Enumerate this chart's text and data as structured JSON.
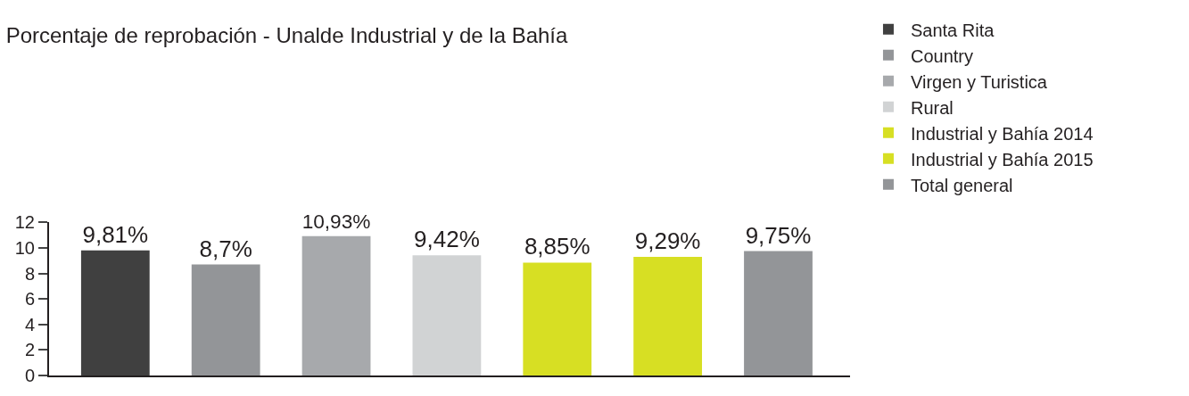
{
  "chart_data": {
    "type": "bar",
    "title": "Porcentaje de reprobación - Unalde Industrial y de la Bahía",
    "categories": [
      null,
      null,
      null,
      null,
      null,
      null,
      null
    ],
    "series": [
      {
        "name": "Santa Rita",
        "color": "#404040",
        "values": [
          9.81,
          null,
          null,
          null,
          null,
          null,
          null
        ],
        "value_labels": [
          "9,81%",
          null,
          null,
          null,
          null,
          null,
          null
        ]
      },
      {
        "name": "Country",
        "color": "#939598",
        "values": [
          null,
          8.7,
          null,
          null,
          null,
          null,
          null
        ],
        "value_labels": [
          null,
          "8,7%",
          null,
          null,
          null,
          null,
          null
        ]
      },
      {
        "name": "Virgen y Turistica",
        "color": "#a7a9ac",
        "values": [
          null,
          null,
          10.93,
          null,
          null,
          null,
          null
        ],
        "value_labels": [
          null,
          null,
          "10,93%",
          null,
          null,
          null,
          null
        ]
      },
      {
        "name": "Rural",
        "color": "#d1d3d4",
        "values": [
          null,
          null,
          null,
          9.42,
          null,
          null,
          null
        ],
        "value_labels": [
          null,
          null,
          null,
          "9,42%",
          null,
          null,
          null
        ]
      },
      {
        "name": "Industrial y Bahía 2014",
        "color": "#d7df23",
        "values": [
          null,
          null,
          null,
          null,
          8.85,
          null,
          null
        ],
        "value_labels": [
          null,
          null,
          null,
          null,
          "8,85%",
          null,
          null
        ]
      },
      {
        "name": "Industrial y Bahía 2015",
        "color": "#d7df23",
        "values": [
          null,
          null,
          null,
          null,
          null,
          9.29,
          null
        ],
        "value_labels": [
          null,
          null,
          null,
          null,
          null,
          "9,29%",
          null
        ]
      },
      {
        "name": "Total general",
        "color": "#939598",
        "values": [
          null,
          null,
          null,
          null,
          null,
          null,
          9.75
        ],
        "value_labels": [
          null,
          null,
          null,
          null,
          null,
          null,
          "9,75%"
        ]
      }
    ],
    "ylim": [
      0,
      12
    ],
    "yticks": [
      0,
      2,
      4,
      6,
      8,
      10,
      12
    ],
    "legend": "right"
  }
}
